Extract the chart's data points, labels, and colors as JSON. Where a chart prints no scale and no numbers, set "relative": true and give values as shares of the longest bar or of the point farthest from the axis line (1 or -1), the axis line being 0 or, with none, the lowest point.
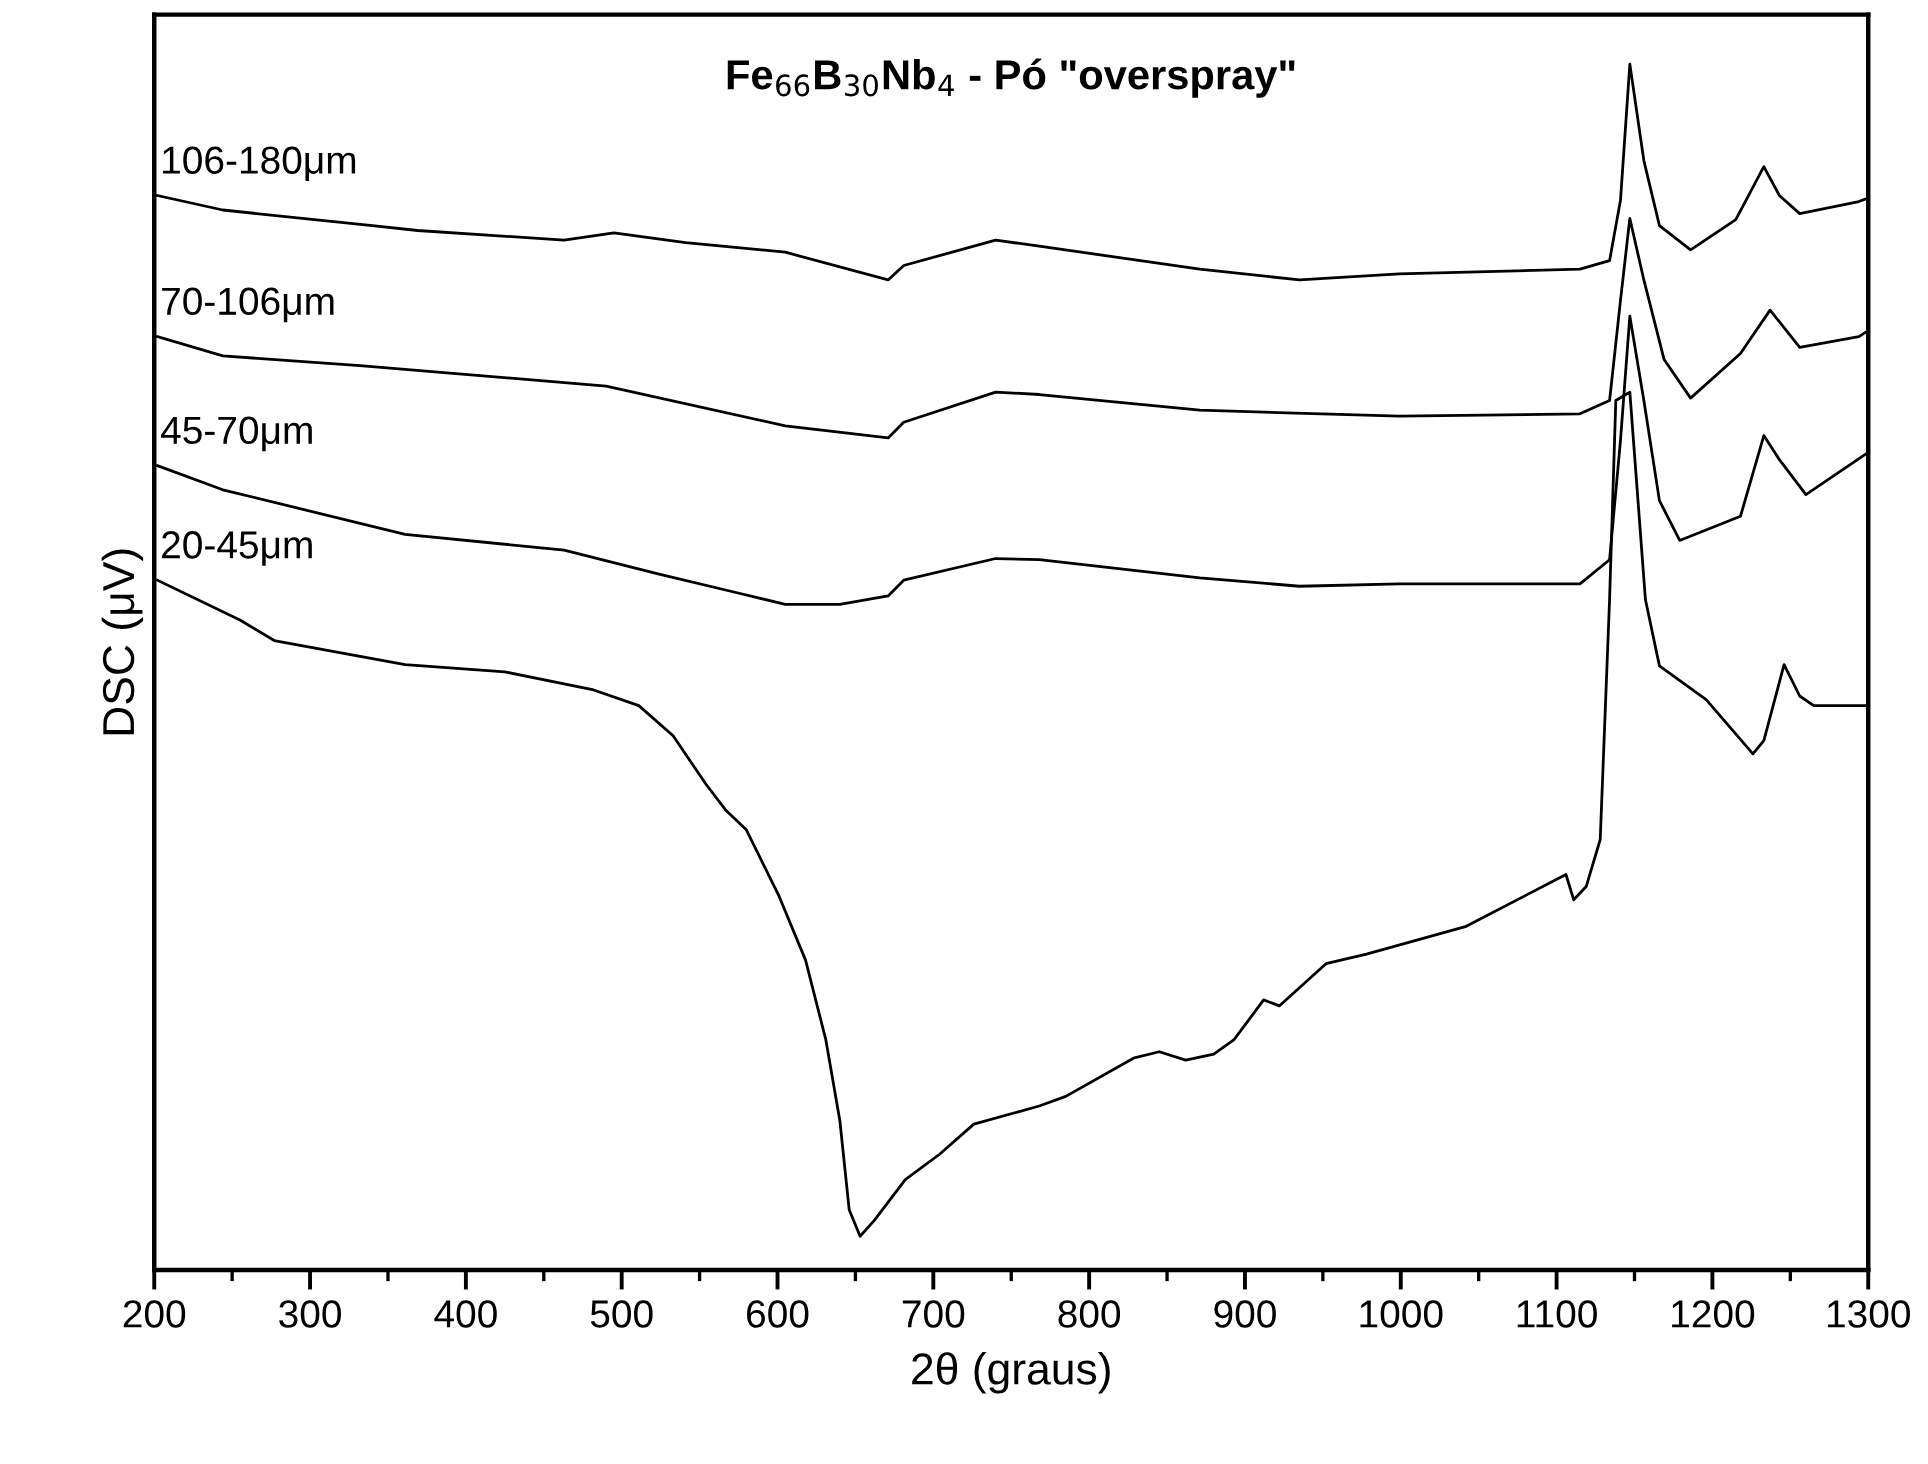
{
  "chart_data": {
    "type": "line",
    "relative": true,
    "title": "Fe$_{66}$B$_{30}$Nb$_{4}$ - Pó \"overspray\"",
    "xlabel": "2θ (graus)",
    "ylabel": "DSC (μV)",
    "xlim": [
      200,
      1300
    ],
    "xticks": [
      200,
      300,
      400,
      500,
      600,
      700,
      800,
      900,
      1000,
      1100,
      1200,
      1300
    ],
    "grid": false,
    "legend": false,
    "marker": "none",
    "line_style": "solid",
    "series": [
      {
        "name": "106-180μm",
        "color": "#000000",
        "x": [
          202,
          244,
          340,
          369,
          463,
          495,
          541,
          605,
          671,
          681,
          740,
          768,
          871,
          935,
          999,
          1115,
          1134,
          1141,
          1147,
          1156,
          1166,
          1186,
          1215,
          1233,
          1243,
          1256,
          1294,
          1300
        ],
        "values": [
          0.891,
          0.879,
          0.866,
          0.862,
          0.854,
          0.86,
          0.852,
          0.844,
          0.821,
          0.833,
          0.854,
          0.849,
          0.83,
          0.821,
          0.826,
          0.83,
          0.837,
          0.887,
          1.0,
          0.92,
          0.866,
          0.846,
          0.871,
          0.915,
          0.891,
          0.876,
          0.886,
          0.889
        ]
      },
      {
        "name": "70-106μm",
        "color": "#000000",
        "x": [
          202,
          244,
          332,
          490,
          605,
          671,
          681,
          740,
          768,
          871,
          999,
          1115,
          1134,
          1141,
          1147,
          1156,
          1169,
          1186,
          1218,
          1237,
          1256,
          1294,
          1300
        ],
        "values": [
          0.774,
          0.758,
          0.75,
          0.733,
          0.7,
          0.69,
          0.703,
          0.728,
          0.726,
          0.713,
          0.708,
          0.71,
          0.721,
          0.804,
          0.872,
          0.821,
          0.755,
          0.723,
          0.76,
          0.796,
          0.765,
          0.774,
          0.779
        ]
      },
      {
        "name": "45-70μm",
        "color": "#000000",
        "x": [
          202,
          244,
          361,
          463,
          524,
          576,
          605,
          640,
          671,
          681,
          740,
          768,
          871,
          935,
          999,
          1115,
          1134,
          1141,
          1147,
          1156,
          1166,
          1179,
          1218,
          1233,
          1243,
          1260,
          1300
        ],
        "values": [
          0.667,
          0.647,
          0.61,
          0.597,
          0.577,
          0.561,
          0.552,
          0.552,
          0.559,
          0.572,
          0.59,
          0.589,
          0.574,
          0.567,
          0.569,
          0.569,
          0.589,
          0.688,
          0.791,
          0.721,
          0.638,
          0.605,
          0.625,
          0.692,
          0.672,
          0.643,
          0.678
        ]
      },
      {
        "name": "20-45μm",
        "color": "#000000",
        "x": [
          202,
          255,
          277,
          319,
          361,
          425,
          482,
          511,
          533,
          554,
          567,
          580,
          601,
          618,
          631,
          640,
          646,
          653,
          662,
          682,
          704,
          726,
          768,
          785,
          829,
          845,
          862,
          880,
          893,
          912,
          922,
          952,
          978,
          1042,
          1106,
          1111,
          1119,
          1128,
          1134,
          1138,
          1147,
          1157,
          1166,
          1196,
          1226,
          1233,
          1246,
          1256,
          1265,
          1299
        ],
        "values": [
          0.572,
          0.539,
          0.522,
          0.512,
          0.502,
          0.496,
          0.481,
          0.468,
          0.443,
          0.403,
          0.381,
          0.365,
          0.31,
          0.257,
          0.191,
          0.124,
          0.05,
          0.028,
          0.041,
          0.075,
          0.096,
          0.121,
          0.136,
          0.144,
          0.176,
          0.181,
          0.174,
          0.179,
          0.191,
          0.224,
          0.219,
          0.254,
          0.262,
          0.285,
          0.328,
          0.307,
          0.318,
          0.357,
          0.556,
          0.721,
          0.728,
          0.556,
          0.501,
          0.473,
          0.428,
          0.439,
          0.502,
          0.476,
          0.468,
          0.468
        ]
      }
    ]
  }
}
